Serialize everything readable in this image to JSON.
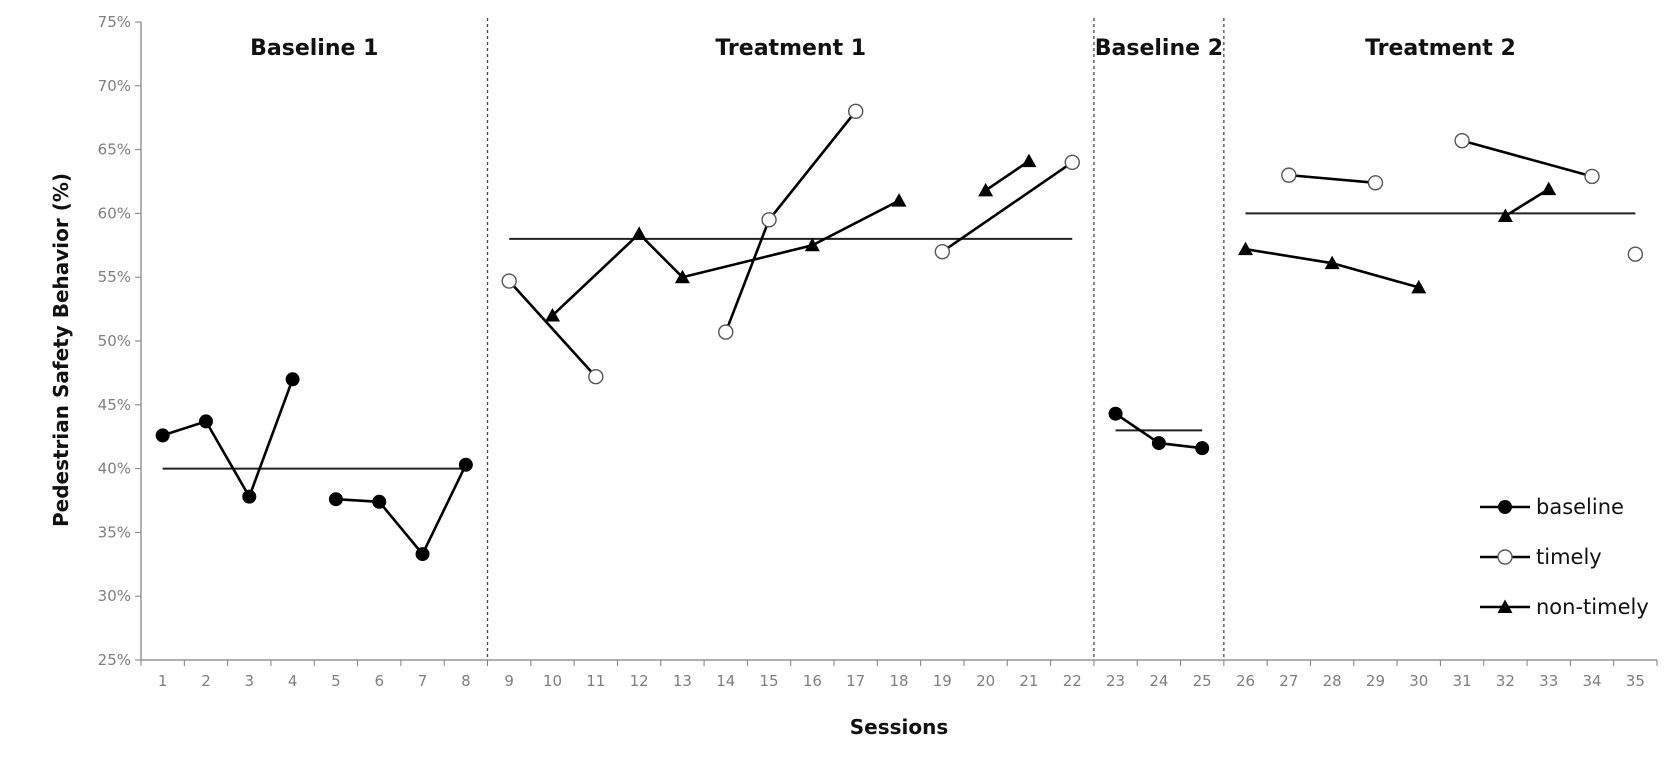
{
  "chart_data": {
    "type": "line",
    "title": "",
    "xlabel": "Sessions",
    "ylabel": "Pedestrian Safety Behavior (%)",
    "ylim": [
      25,
      75
    ],
    "yticks": [
      25,
      30,
      35,
      40,
      45,
      50,
      55,
      60,
      65,
      70,
      75
    ],
    "ytick_labels": [
      "25%",
      "30%",
      "35%",
      "40%",
      "45%",
      "50%",
      "55%",
      "60%",
      "65%",
      "70%",
      "75%"
    ],
    "categories": [
      "1",
      "2",
      "3",
      "4",
      "5",
      "6",
      "7",
      "8",
      "9",
      "10",
      "11",
      "12",
      "13",
      "14",
      "15",
      "16",
      "17",
      "18",
      "19",
      "20",
      "21",
      "22",
      "23",
      "24",
      "25",
      "26",
      "27",
      "28",
      "29",
      "30",
      "31",
      "32",
      "33",
      "34",
      "35"
    ],
    "grid": false,
    "legend_position": "bottom-right",
    "phases": [
      {
        "label": "Baseline 1",
        "start": 1,
        "end": 8,
        "mean": 40
      },
      {
        "label": "Treatment 1",
        "start": 9,
        "end": 22,
        "mean": 58
      },
      {
        "label": "Baseline 2",
        "start": 23,
        "end": 25,
        "mean": 43
      },
      {
        "label": "Treatment 2",
        "start": 26,
        "end": 35,
        "mean": 60
      }
    ],
    "phase_dividers": [
      8.5,
      22.5,
      25.5
    ],
    "series": [
      {
        "name": "baseline",
        "marker": "filled-circle",
        "segments": [
          [
            [
              1,
              42.6
            ],
            [
              2,
              43.7
            ],
            [
              3,
              37.8
            ],
            [
              4,
              47.0
            ]
          ],
          [
            [
              5,
              37.6
            ],
            [
              6,
              37.4
            ],
            [
              7,
              33.3
            ],
            [
              8,
              40.3
            ]
          ],
          [
            [
              23,
              44.3
            ],
            [
              24,
              42.0
            ],
            [
              25,
              41.6
            ]
          ]
        ]
      },
      {
        "name": "timely",
        "marker": "open-circle",
        "segments": [
          [
            [
              9,
              54.7
            ],
            [
              11,
              47.2
            ]
          ],
          [
            [
              14,
              50.7
            ],
            [
              15,
              59.5
            ],
            [
              17,
              68.0
            ]
          ],
          [
            [
              19,
              57.0
            ],
            [
              22,
              64.0
            ]
          ],
          [
            [
              27,
              63.0
            ],
            [
              29,
              62.4
            ]
          ],
          [
            [
              31,
              65.7
            ],
            [
              34,
              62.9
            ]
          ],
          [
            [
              35,
              56.8
            ]
          ]
        ]
      },
      {
        "name": "non-timely",
        "marker": "filled-triangle",
        "segments": [
          [
            [
              10,
              52.0
            ],
            [
              12,
              58.4
            ],
            [
              13,
              55.0
            ],
            [
              16,
              57.5
            ],
            [
              18,
              61.0
            ]
          ],
          [
            [
              20,
              61.8
            ],
            [
              21,
              64.1
            ]
          ],
          [
            [
              26,
              57.2
            ],
            [
              28,
              56.1
            ],
            [
              30,
              54.2
            ]
          ],
          [
            [
              32,
              59.8
            ],
            [
              33,
              61.9
            ]
          ]
        ]
      }
    ]
  }
}
